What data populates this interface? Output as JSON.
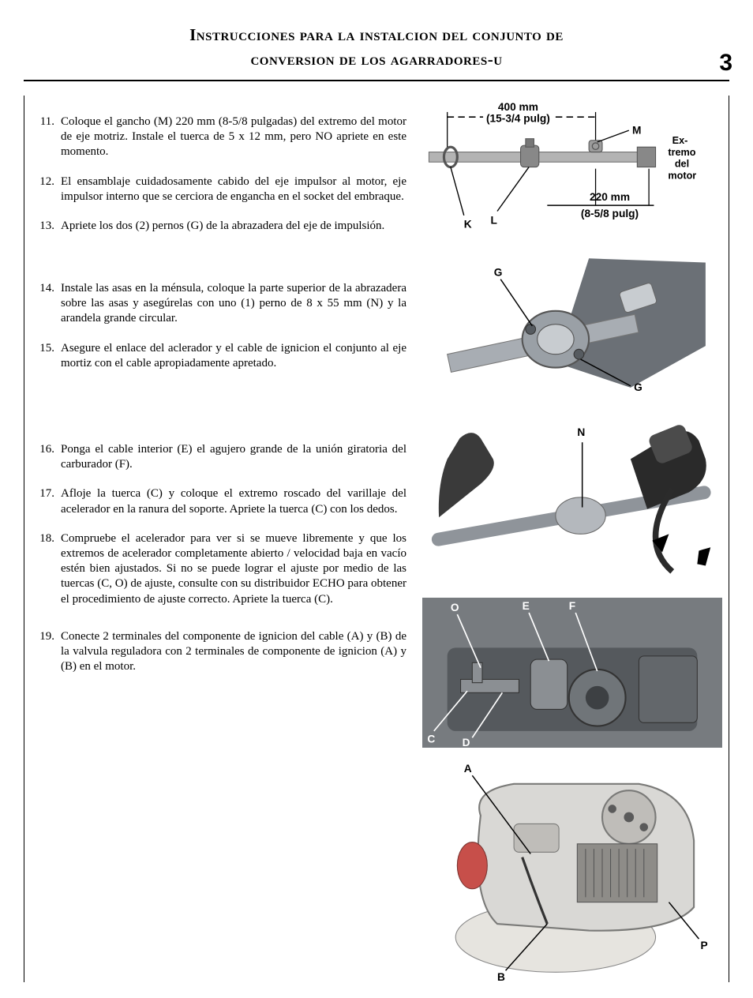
{
  "header": {
    "title_line1": "Instrucciones para la instalcion del conjunto de",
    "title_line2": "conversion de los agarradores-u",
    "page_number": "3"
  },
  "steps": [
    {
      "n": "11.",
      "text": "Coloque el gancho (M) 220 mm (8-5/8 pulgadas) del extremo del motor de eje motriz. Instale el tuerca de 5 x 12 mm, pero NO apriete en este momento.",
      "gap": ""
    },
    {
      "n": "12.",
      "text": "El ensamblaje cuidadosamente cabido del eje impulsor al motor, eje impulsor interno que se cerciora de engancha en el socket del embraque.",
      "gap": ""
    },
    {
      "n": "13.",
      "text": "Apriete los dos (2) pernos (G) de la abrazadera del eje de impulsión.",
      "gap": "gap-md"
    },
    {
      "n": "14.",
      "text": "Instale las asas en la ménsula, coloque la parte superior de la abrazadera sobre las asas y asegúrelas con uno (1) perno de 8  x 55 mm (N) y la arandela grande circular.",
      "gap": ""
    },
    {
      "n": "15.",
      "text": "Asegure el enlace del aclerador y el cable de ignicion el conjunto al eje mortiz con el cable apropiadamente apretado.",
      "gap": "gap-lg"
    },
    {
      "n": "16.",
      "text": "Ponga el cable interior (E) el agujero grande de la unión giratoria del carburador (F).",
      "gap": ""
    },
    {
      "n": "17.",
      "text": "Afloje la tuerca (C) y coloque el extremo roscado del varillaje del acelerador en la ranura del soporte. Apriete la tuerca (C) con los dedos.",
      "gap": ""
    },
    {
      "n": "18.",
      "text": "Compruebe el acelerador para ver si se mueve libremente y que los extremos de acelerador completamente abierto / velocidad baja en vacío estén bien ajustados. Si no se puede lograr el ajuste por medio de las tuercas (C, O) de ajuste, consulte con su distribuidor ECHO para obtener el procedimiento de ajuste correcto. Apriete la tuerca (C).",
      "gap": "gap-sm"
    },
    {
      "n": "19.",
      "text": "Conecte 2 terminales del componente de ignicion del cable (A) y (B) de la valvula reguladora con 2 terminales de componente de ignicion (A) y (B) en el motor.",
      "gap": ""
    }
  ],
  "fig1": {
    "top_dim": "400 mm",
    "top_dim2": "(15-3/4 pulg)",
    "bot_dim": "220 mm",
    "bot_dim2": "(8-5/8 pulg)",
    "side_label_l1": "Ex-",
    "side_label_l2": "tremo",
    "side_label_l3": "del",
    "side_label_l4": "motor",
    "K": "K",
    "L": "L",
    "M": "M",
    "colors": {
      "shaft": "#b3b3b3",
      "hardware": "#777777",
      "grip": "#888888",
      "bg": "#ffffff",
      "line": "#000000"
    }
  },
  "fig2": {
    "G": "G",
    "colors": {
      "hub": "#9aa0a6",
      "cone": "#6b7076",
      "line": "#000000",
      "bg": "#ffffff"
    }
  },
  "fig3": {
    "N": "N",
    "colors": {
      "handle": "#3a3a3a",
      "bar": "#8f949a",
      "grip": "#2a2a2a",
      "arrow": "#000000",
      "line": "#000000"
    }
  },
  "fig4": {
    "O": "O",
    "E": "E",
    "F": "F",
    "C": "C",
    "D": "D",
    "colors": {
      "engine": "#707579",
      "line": "#000000",
      "bg": "#ffffff",
      "highlight": "#55595d"
    }
  },
  "fig5": {
    "A": "A",
    "B": "B",
    "P": "P",
    "colors": {
      "cover": "#d9d8d5",
      "engine": "#8e8c88",
      "tank": "#e6e4df",
      "detail": "#5a5a5a",
      "line": "#000000"
    }
  }
}
